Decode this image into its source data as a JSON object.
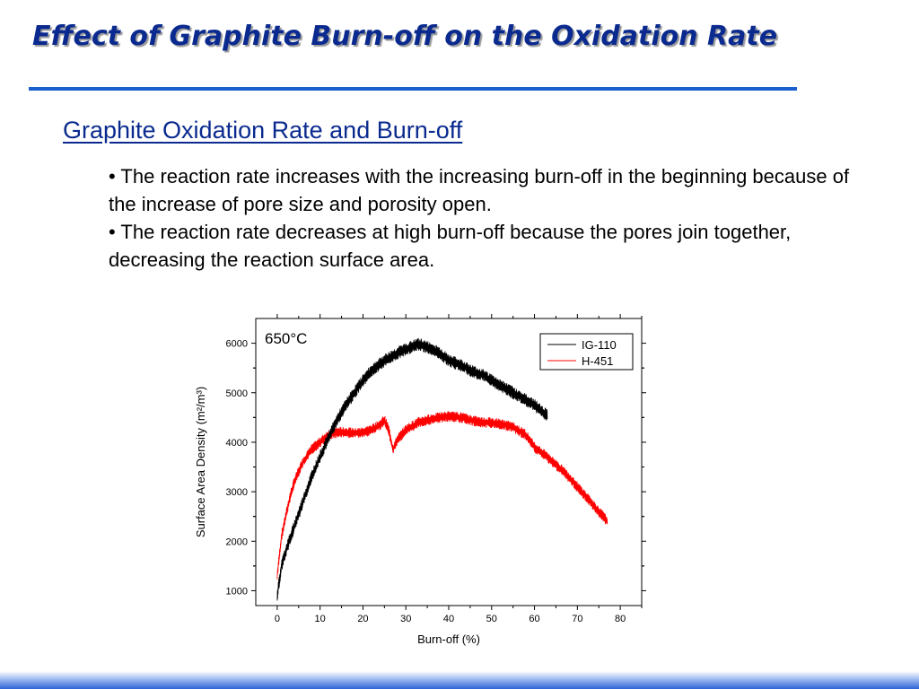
{
  "slide": {
    "title": "Effect of Graphite Burn-off on the Oxidation Rate",
    "subtitle": "Graphite Oxidation Rate and Burn-off",
    "bullets": [
      "• The reaction rate increases with the increasing burn-off in the beginning because of the increase of pore size and porosity open.",
      "• The reaction rate decreases at high burn-off because the pores join together, decreasing the reaction surface area."
    ]
  },
  "colors": {
    "title": "#0a2a8f",
    "rule": "#1a5fd0",
    "ig110": "#000000",
    "h451": "#ff0000"
  },
  "chart_data": {
    "type": "line",
    "annotation": "650°C",
    "xlabel": "Burn-off (%)",
    "ylabel": "Surface Area Density (m²/m³)",
    "xlim": [
      -5,
      85
    ],
    "ylim": [
      700,
      6500
    ],
    "xticks": [
      0,
      10,
      20,
      30,
      40,
      50,
      60,
      70,
      80
    ],
    "yticks": [
      1000,
      2000,
      3000,
      4000,
      5000,
      6000
    ],
    "grid": false,
    "legend": "top-right",
    "series": [
      {
        "name": "IG-110",
        "color": "#000000",
        "noise": 130,
        "x": [
          0,
          1,
          2,
          4,
          6,
          8,
          10,
          12,
          14,
          16,
          18,
          20,
          22,
          25,
          28,
          30,
          32,
          33,
          35,
          38,
          40,
          43,
          45,
          48,
          50,
          53,
          55,
          58,
          60,
          62,
          63
        ],
        "y": [
          900,
          1500,
          1800,
          2300,
          2800,
          3300,
          3700,
          4100,
          4450,
          4750,
          5000,
          5250,
          5450,
          5650,
          5800,
          5880,
          5950,
          5980,
          5920,
          5800,
          5650,
          5550,
          5450,
          5350,
          5250,
          5100,
          5000,
          4850,
          4750,
          4600,
          4550
        ]
      },
      {
        "name": "H-451",
        "color": "#ff0000",
        "noise": 110,
        "x": [
          0,
          1,
          2,
          3,
          4,
          6,
          8,
          10,
          12,
          14,
          16,
          18,
          20,
          22,
          24,
          25,
          26,
          27,
          28,
          30,
          33,
          35,
          38,
          40,
          43,
          45,
          48,
          50,
          53,
          55,
          57,
          58,
          60,
          63,
          65,
          68,
          70,
          72,
          75,
          77
        ],
        "y": [
          1300,
          2100,
          2500,
          2900,
          3200,
          3600,
          3850,
          4000,
          4150,
          4200,
          4200,
          4180,
          4200,
          4250,
          4350,
          4450,
          4250,
          3850,
          4050,
          4250,
          4400,
          4450,
          4500,
          4520,
          4500,
          4450,
          4400,
          4400,
          4350,
          4300,
          4200,
          4150,
          3900,
          3700,
          3550,
          3300,
          3100,
          2900,
          2600,
          2400
        ]
      }
    ]
  }
}
